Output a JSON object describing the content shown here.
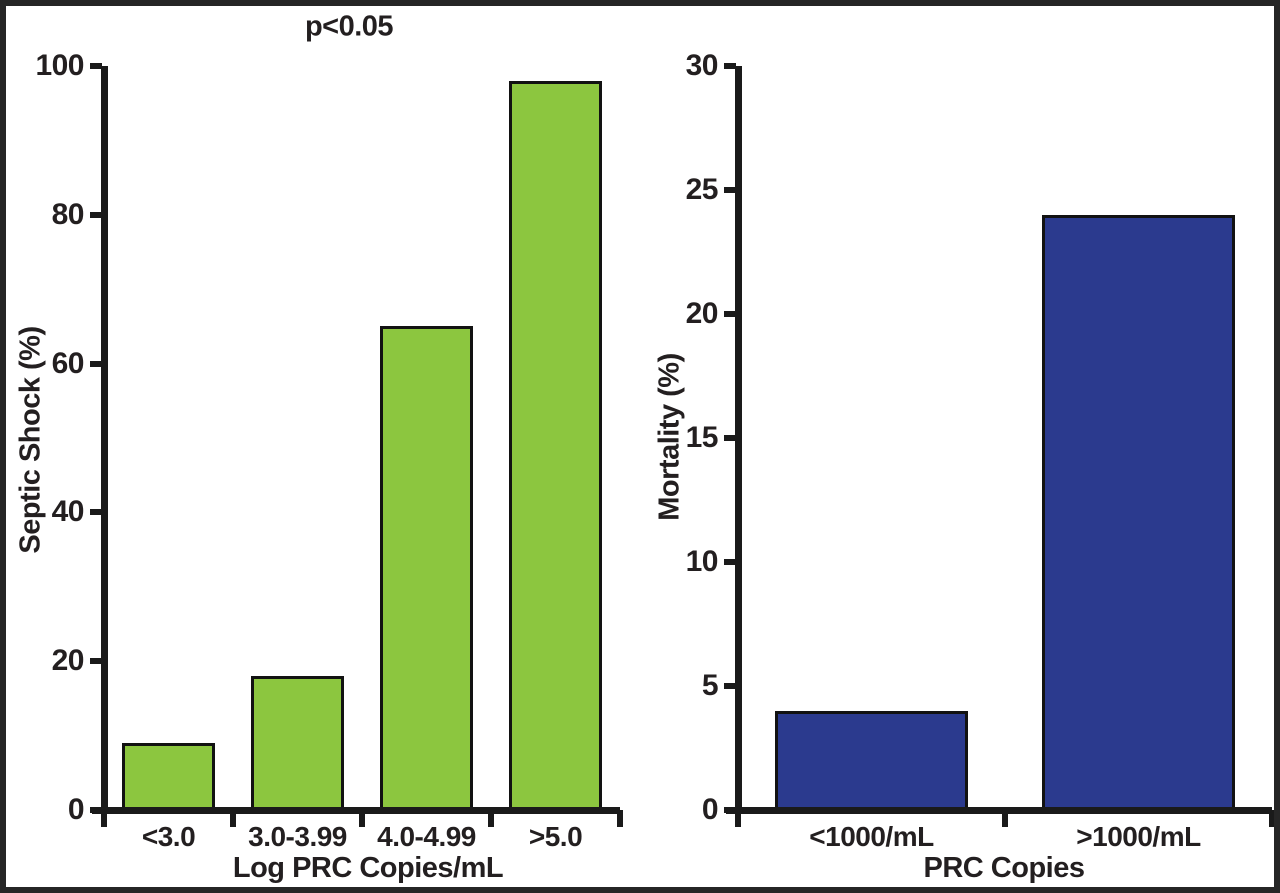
{
  "figure": {
    "background_color": "#FFFFFF",
    "frame_border_color": "#262626",
    "axis_color": "#1A1A1A",
    "text_color": "#231F20"
  },
  "chart_data": [
    {
      "type": "bar",
      "panel": "left",
      "annotation": "p<0.05",
      "categories": [
        "<3.0",
        "3.0-3.99",
        "4.0-4.99",
        ">5.0"
      ],
      "values": [
        9,
        18,
        65,
        98
      ],
      "xlabel": "Log PRC Copies/mL",
      "ylabel": "Septic Shock (%)",
      "ylim": [
        0,
        100
      ],
      "yticks": [
        0,
        20,
        40,
        60,
        80,
        100
      ],
      "bar_color": "#8CC63F",
      "bar_border_color": "#121212",
      "grid": false,
      "legend": null
    },
    {
      "type": "bar",
      "panel": "right",
      "annotation": "",
      "categories": [
        "<1000/mL",
        ">1000/mL"
      ],
      "values": [
        4,
        24
      ],
      "xlabel": "PRC Copies",
      "ylabel": "Mortality (%)",
      "ylim": [
        0,
        30
      ],
      "yticks": [
        0,
        5,
        10,
        15,
        20,
        25,
        30
      ],
      "bar_color": "#2B3A8E",
      "bar_border_color": "#121212",
      "grid": false,
      "legend": null
    }
  ]
}
